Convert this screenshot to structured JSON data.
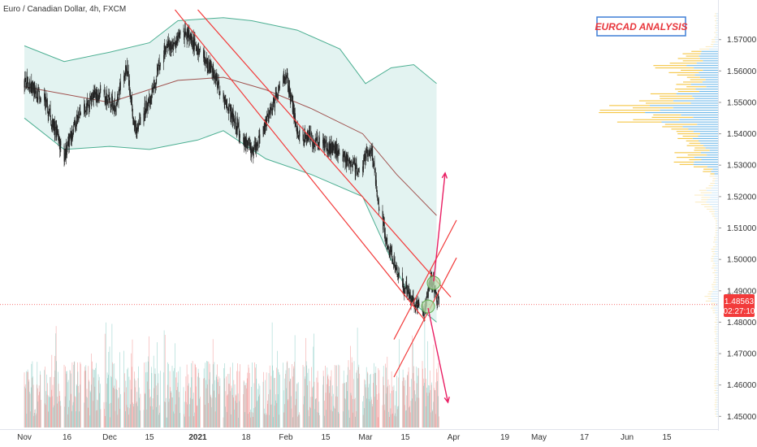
{
  "header": {
    "symbol_label": "Euro / Canadian Dollar, 4h, FXCM"
  },
  "title": "EURCAD ANALYSIS",
  "price_tag": {
    "value": "1.48563",
    "countdown": "02:27:10"
  },
  "colors": {
    "up_candle": "#26a69a",
    "down_candle": "#ef5350",
    "candle_body": "#222222",
    "band_fill": "#e3f3f1",
    "band_line": "#4caf92",
    "basis_line": "#a0524f",
    "channel": "#f23b3b",
    "arrow": "#e91e63",
    "last_price": "#f23b3b",
    "vp_yellow": "#f5c542",
    "vp_blue": "#6fb8e8",
    "title_border": "#3f7fd6"
  },
  "chart_data": {
    "type": "candlestick",
    "instrument": "Euro / Canadian Dollar",
    "timeframe": "4h",
    "source": "FXCM",
    "title": "EURCAD ANALYSIS",
    "x_ticks": [
      "Nov",
      "16",
      "Dec",
      "15",
      "2021",
      "18",
      "Feb",
      "15",
      "Mar",
      "15",
      "Apr",
      "19",
      "May",
      "17",
      "Jun",
      "15"
    ],
    "y_ticks": [
      "1.57000",
      "1.56000",
      "1.55000",
      "1.54000",
      "1.53000",
      "1.52000",
      "1.51000",
      "1.50000",
      "1.49000",
      "1.48000",
      "1.47000",
      "1.46000",
      "1.45000"
    ],
    "ylim": [
      1.4475,
      1.5795
    ],
    "last_price": 1.48563,
    "price_path": [
      {
        "date": "2020-11-01",
        "price": 1.557
      },
      {
        "date": "2020-11-08",
        "price": 1.551
      },
      {
        "date": "2020-11-15",
        "price": 1.533
      },
      {
        "date": "2020-11-20",
        "price": 1.546
      },
      {
        "date": "2020-11-27",
        "price": 1.553
      },
      {
        "date": "2020-12-03",
        "price": 1.549
      },
      {
        "date": "2020-12-07",
        "price": 1.561
      },
      {
        "date": "2020-12-10",
        "price": 1.541
      },
      {
        "date": "2020-12-15",
        "price": 1.551
      },
      {
        "date": "2020-12-20",
        "price": 1.566
      },
      {
        "date": "2020-12-28",
        "price": 1.572
      },
      {
        "date": "2021-01-05",
        "price": 1.562
      },
      {
        "date": "2021-01-12",
        "price": 1.548
      },
      {
        "date": "2021-01-20",
        "price": 1.533
      },
      {
        "date": "2021-01-27",
        "price": 1.548
      },
      {
        "date": "2021-02-01",
        "price": 1.559
      },
      {
        "date": "2021-02-05",
        "price": 1.541
      },
      {
        "date": "2021-02-12",
        "price": 1.537
      },
      {
        "date": "2021-02-20",
        "price": 1.534
      },
      {
        "date": "2021-02-27",
        "price": 1.528
      },
      {
        "date": "2021-03-03",
        "price": 1.536
      },
      {
        "date": "2021-03-06",
        "price": 1.515
      },
      {
        "date": "2021-03-10",
        "price": 1.501
      },
      {
        "date": "2021-03-13",
        "price": 1.494
      },
      {
        "date": "2021-03-18",
        "price": 1.486
      },
      {
        "date": "2021-03-22",
        "price": 1.484
      },
      {
        "date": "2021-03-24",
        "price": 1.494
      },
      {
        "date": "2021-03-27",
        "price": 1.4856
      }
    ],
    "bollinger_upper": [
      {
        "date": "2020-11-01",
        "price": 1.568
      },
      {
        "date": "2020-11-15",
        "price": 1.563
      },
      {
        "date": "2020-12-01",
        "price": 1.566
      },
      {
        "date": "2020-12-15",
        "price": 1.569
      },
      {
        "date": "2020-12-25",
        "price": 1.576
      },
      {
        "date": "2021-01-10",
        "price": 1.577
      },
      {
        "date": "2021-01-20",
        "price": 1.576
      },
      {
        "date": "2021-02-05",
        "price": 1.573
      },
      {
        "date": "2021-02-20",
        "price": 1.567
      },
      {
        "date": "2021-03-01",
        "price": 1.556
      },
      {
        "date": "2021-03-10",
        "price": 1.561
      },
      {
        "date": "2021-03-18",
        "price": 1.562
      },
      {
        "date": "2021-03-26",
        "price": 1.556
      }
    ],
    "bollinger_basis": [
      {
        "date": "2020-11-01",
        "price": 1.555
      },
      {
        "date": "2020-12-01",
        "price": 1.55
      },
      {
        "date": "2020-12-25",
        "price": 1.557
      },
      {
        "date": "2021-01-10",
        "price": 1.558
      },
      {
        "date": "2021-01-25",
        "price": 1.554
      },
      {
        "date": "2021-02-10",
        "price": 1.548
      },
      {
        "date": "2021-02-28",
        "price": 1.54
      },
      {
        "date": "2021-03-12",
        "price": 1.527
      },
      {
        "date": "2021-03-26",
        "price": 1.514
      }
    ],
    "bollinger_lower": [
      {
        "date": "2020-11-01",
        "price": 1.545
      },
      {
        "date": "2020-11-15",
        "price": 1.535
      },
      {
        "date": "2020-12-01",
        "price": 1.536
      },
      {
        "date": "2020-12-15",
        "price": 1.535
      },
      {
        "date": "2021-01-01",
        "price": 1.538
      },
      {
        "date": "2021-01-10",
        "price": 1.541
      },
      {
        "date": "2021-01-25",
        "price": 1.532
      },
      {
        "date": "2021-02-10",
        "price": 1.527
      },
      {
        "date": "2021-02-28",
        "price": 1.52
      },
      {
        "date": "2021-03-10",
        "price": 1.5
      },
      {
        "date": "2021-03-18",
        "price": 1.486
      },
      {
        "date": "2021-03-26",
        "price": 1.48
      }
    ],
    "annotations": {
      "descending_channel": [
        {
          "start": {
            "date": "2020-12-24",
            "price": 1.5795
          },
          "end": {
            "date": "2021-03-22",
            "price": 1.4805
          }
        },
        {
          "start": {
            "date": "2021-01-01",
            "price": 1.5795
          },
          "end": {
            "date": "2021-03-31",
            "price": 1.488
          }
        }
      ],
      "ascending_lines": [
        {
          "start": {
            "date": "2021-03-11",
            "price": 1.4745
          },
          "end": {
            "date": "2021-04-02",
            "price": 1.5125
          }
        },
        {
          "start": {
            "date": "2021-03-11",
            "price": 1.4625
          },
          "end": {
            "date": "2021-04-02",
            "price": 1.5005
          }
        }
      ],
      "arrows": [
        {
          "from": {
            "date": "2021-03-25",
            "price": 1.493
          },
          "to": {
            "date": "2021-03-29",
            "price": 1.5275
          }
        },
        {
          "from": {
            "date": "2021-03-23",
            "price": 1.4845
          },
          "to": {
            "date": "2021-03-30",
            "price": 1.4545
          }
        }
      ],
      "circles": [
        {
          "date": "2021-03-25",
          "price": 1.4925
        },
        {
          "date": "2021-03-23",
          "price": 1.485
        }
      ]
    }
  }
}
